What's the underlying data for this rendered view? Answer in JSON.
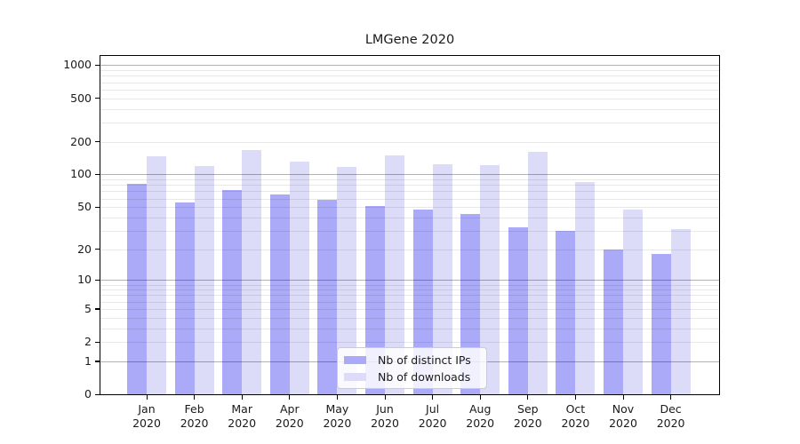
{
  "title": "LMGene 2020",
  "chart_data": {
    "type": "bar",
    "title": "LMGene 2020",
    "categories": [
      "Jan 2020",
      "Feb 2020",
      "Mar 2020",
      "Apr 2020",
      "May 2020",
      "Jun 2020",
      "Jul 2020",
      "Aug 2020",
      "Sep 2020",
      "Oct 2020",
      "Nov 2020",
      "Dec 2020"
    ],
    "x_tick_line1": [
      "Jan",
      "Feb",
      "Mar",
      "Apr",
      "May",
      "Jun",
      "Jul",
      "Aug",
      "Sep",
      "Oct",
      "Nov",
      "Dec"
    ],
    "x_tick_line2": "2020",
    "series": [
      {
        "name": "Nb of distinct IPs",
        "color": "#aaaaf8",
        "values": [
          82,
          55,
          72,
          65,
          58,
          51,
          47,
          43,
          32,
          30,
          20,
          18
        ]
      },
      {
        "name": "Nb of downloads",
        "color": "#dcdcf8",
        "values": [
          146,
          120,
          168,
          131,
          118,
          151,
          125,
          122,
          162,
          85,
          47,
          31
        ]
      }
    ],
    "xlabel": "",
    "ylabel": "",
    "y_axis": {
      "scale": "log10(1+y)",
      "tick_values": [
        0,
        1,
        2,
        5,
        10,
        20,
        50,
        100,
        200,
        500,
        1000
      ],
      "ylim": [
        0,
        1230
      ],
      "grid": true,
      "major_grid_at": [
        1,
        10,
        100,
        1000
      ]
    },
    "legend_position": "bottom-center"
  },
  "colors": {
    "bar_distinct_ips": "#aaaaf8",
    "bar_downloads": "#dcdcf8",
    "major_grid": "#b3b3b3",
    "minor_grid": "#e8e8e8",
    "spine": "#000000",
    "text": "#1a1a1a",
    "legend_border": "#cccccc"
  }
}
